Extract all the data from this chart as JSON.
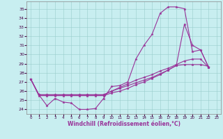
{
  "xlabel": "Windchill (Refroidissement éolien,°C)",
  "bg_color": "#c8eef0",
  "line_color": "#993399",
  "grid_color": "#99cccc",
  "xlim": [
    -0.5,
    23.5
  ],
  "ylim": [
    23.5,
    35.8
  ],
  "yticks": [
    24,
    25,
    26,
    27,
    28,
    29,
    30,
    31,
    32,
    33,
    34,
    35
  ],
  "xticks": [
    0,
    1,
    2,
    3,
    4,
    5,
    6,
    7,
    8,
    9,
    10,
    11,
    12,
    13,
    14,
    15,
    16,
    17,
    18,
    19,
    20,
    21,
    22,
    23
  ],
  "series": [
    {
      "x": [
        0,
        1,
        2,
        3,
        4,
        5,
        6,
        7,
        8,
        9,
        10,
        11,
        12,
        13,
        14,
        15,
        16,
        17,
        18,
        19,
        20,
        21,
        22
      ],
      "y": [
        27.3,
        25.6,
        24.4,
        25.2,
        24.8,
        24.7,
        24.0,
        24.0,
        24.1,
        25.2,
        26.5,
        26.6,
        27.0,
        29.5,
        31.0,
        32.2,
        34.5,
        35.2,
        35.2,
        35.0,
        30.3,
        30.5,
        28.6
      ]
    },
    {
      "x": [
        0,
        1,
        2,
        3,
        4,
        5,
        6,
        7,
        8,
        9,
        10,
        11,
        12,
        13,
        14,
        15,
        16,
        17,
        18,
        19,
        20,
        21,
        22
      ],
      "y": [
        27.3,
        25.5,
        25.5,
        25.5,
        25.5,
        25.5,
        25.5,
        25.5,
        25.5,
        25.5,
        25.8,
        26.0,
        26.3,
        26.7,
        27.0,
        27.4,
        27.8,
        28.3,
        28.8,
        33.3,
        31.0,
        30.5,
        28.6
      ]
    },
    {
      "x": [
        0,
        1,
        2,
        3,
        4,
        5,
        6,
        7,
        8,
        9,
        10,
        11,
        12,
        13,
        14,
        15,
        16,
        17,
        18,
        19,
        20,
        21,
        22
      ],
      "y": [
        27.3,
        25.6,
        25.6,
        25.6,
        25.6,
        25.6,
        25.6,
        25.6,
        25.6,
        25.6,
        26.0,
        26.4,
        26.8,
        27.2,
        27.5,
        27.8,
        28.2,
        28.5,
        28.9,
        29.3,
        29.5,
        29.5,
        28.6
      ]
    },
    {
      "x": [
        0,
        1,
        2,
        3,
        4,
        5,
        6,
        7,
        8,
        9,
        10,
        11,
        12,
        13,
        14,
        15,
        16,
        17,
        18,
        19,
        20,
        21,
        22
      ],
      "y": [
        27.3,
        25.6,
        25.6,
        25.6,
        25.6,
        25.6,
        25.6,
        25.6,
        25.6,
        25.6,
        26.0,
        26.3,
        26.6,
        26.9,
        27.2,
        27.5,
        27.9,
        28.3,
        28.8,
        28.9,
        28.9,
        28.9,
        28.7
      ]
    }
  ]
}
